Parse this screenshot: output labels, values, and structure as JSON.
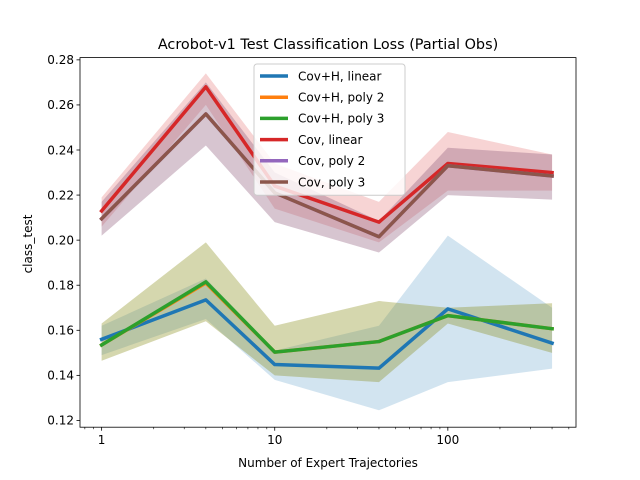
{
  "chart_data": {
    "type": "line",
    "title": "Acrobot-v1 Test Classification Loss (Partial Obs)",
    "xlabel": "Number of Expert Trajectories",
    "ylabel": "class_test",
    "xscale": "log",
    "xlim": [
      0.75,
      550
    ],
    "ylim": [
      0.117,
      0.281
    ],
    "xticks": [
      {
        "value": 1,
        "label": "1"
      },
      {
        "value": 10,
        "label": "10"
      },
      {
        "value": 100,
        "label": "100"
      }
    ],
    "yticks": [
      {
        "value": 0.12,
        "label": "0.12"
      },
      {
        "value": 0.14,
        "label": "0.14"
      },
      {
        "value": 0.16,
        "label": "0.16"
      },
      {
        "value": 0.18,
        "label": "0.18"
      },
      {
        "value": 0.2,
        "label": "0.20"
      },
      {
        "value": 0.22,
        "label": "0.22"
      },
      {
        "value": 0.24,
        "label": "0.24"
      },
      {
        "value": 0.26,
        "label": "0.26"
      },
      {
        "value": 0.28,
        "label": "0.28"
      }
    ],
    "grid": false,
    "legend_position": "top-center",
    "x": [
      1,
      4,
      10,
      40,
      100,
      400
    ],
    "series": [
      {
        "name": "Cov+H, linear",
        "color": "#1f77b4",
        "values": [
          0.156,
          0.1735,
          0.1448,
          0.1432,
          0.1695,
          0.1543
        ],
        "lower": [
          0.149,
          0.165,
          0.138,
          0.1245,
          0.137,
          0.143
        ],
        "upper": [
          0.162,
          0.183,
          0.151,
          0.162,
          0.202,
          0.17
        ]
      },
      {
        "name": "Cov+H, poly 2",
        "color": "#ff7f0e",
        "values": [
          0.1535,
          0.181,
          0.1503,
          0.155,
          0.1665,
          0.1607
        ],
        "lower": [
          0.1465,
          0.164,
          0.14,
          0.137,
          0.163,
          0.15
        ],
        "upper": [
          0.163,
          0.199,
          0.162,
          0.173,
          0.17,
          0.172
        ]
      },
      {
        "name": "Cov+H, poly 3",
        "color": "#2ca02c",
        "values": [
          0.1535,
          0.1815,
          0.1503,
          0.155,
          0.1665,
          0.1607
        ],
        "lower": [
          0.1465,
          0.164,
          0.14,
          0.137,
          0.163,
          0.15
        ],
        "upper": [
          0.163,
          0.199,
          0.162,
          0.173,
          0.17,
          0.172
        ]
      },
      {
        "name": "Cov, linear",
        "color": "#d62728",
        "values": [
          0.213,
          0.268,
          0.224,
          0.208,
          0.234,
          0.23
        ],
        "lower": [
          0.206,
          0.26,
          0.214,
          0.199,
          0.222,
          0.222
        ],
        "upper": [
          0.219,
          0.274,
          0.234,
          0.217,
          0.248,
          0.238
        ]
      },
      {
        "name": "Cov, poly 2",
        "color": "#9467bd",
        "values": [
          0.2095,
          0.256,
          0.221,
          0.2015,
          0.233,
          0.2285
        ],
        "lower": [
          0.202,
          0.242,
          0.208,
          0.1945,
          0.22,
          0.218
        ],
        "upper": [
          0.217,
          0.27,
          0.23,
          0.2085,
          0.241,
          0.238
        ]
      },
      {
        "name": "Cov, poly 3",
        "color": "#8c564b",
        "values": [
          0.2095,
          0.256,
          0.221,
          0.2015,
          0.233,
          0.2285
        ],
        "lower": [
          0.202,
          0.242,
          0.208,
          0.1945,
          0.22,
          0.218
        ],
        "upper": [
          0.217,
          0.27,
          0.23,
          0.2085,
          0.241,
          0.238
        ]
      }
    ]
  }
}
